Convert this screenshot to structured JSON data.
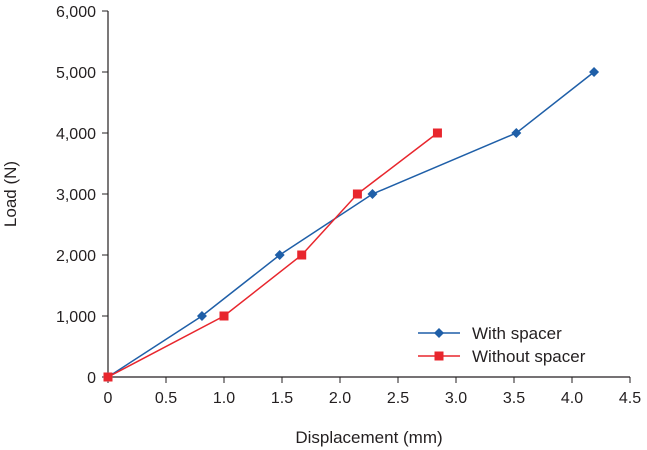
{
  "chart_data": {
    "type": "line",
    "title": "",
    "xlabel": "Displacement (mm)",
    "ylabel": "Load (N)",
    "xlim": [
      0,
      4.5
    ],
    "ylim": [
      0,
      6000
    ],
    "xticks": [
      "0",
      "0.5",
      "1.0",
      "1.5",
      "2.0",
      "2.5",
      "3.0",
      "3.5",
      "4.0",
      "4.5"
    ],
    "xtick_values": [
      0,
      0.5,
      1.0,
      1.5,
      2.0,
      2.5,
      3.0,
      3.5,
      4.0,
      4.5
    ],
    "yticks": [
      "0",
      "1,000",
      "2,000",
      "3,000",
      "4,000",
      "5,000",
      "6,000"
    ],
    "ytick_values": [
      0,
      1000,
      2000,
      3000,
      4000,
      5000,
      6000
    ],
    "grid": false,
    "legend_position": "bottom-right",
    "series": [
      {
        "name": "With spacer",
        "color": "#1f5fa8",
        "marker": "diamond",
        "x": [
          0,
          0.81,
          1.48,
          2.28,
          3.52,
          4.19
        ],
        "y": [
          0,
          1000,
          2000,
          3000,
          4000,
          5000
        ]
      },
      {
        "name": "Without spacer",
        "color": "#e8262d",
        "marker": "square",
        "x": [
          0,
          1.0,
          1.67,
          2.15,
          2.84
        ],
        "y": [
          0,
          1000,
          2000,
          3000,
          4000
        ]
      }
    ]
  }
}
